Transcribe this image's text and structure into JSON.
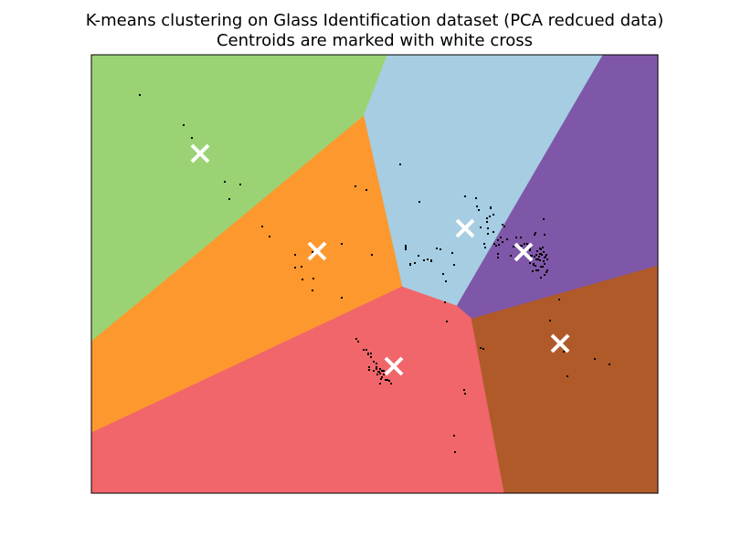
{
  "chart_data": {
    "type": "scatter",
    "title": "K-means clustering on Glass Identification dataset (PCA redcued data)",
    "subtitle": "Centroids are marked with white cross",
    "xlabel": "",
    "ylabel": "",
    "xlim": [
      0,
      620
    ],
    "ylim": [
      0,
      480
    ],
    "grid": false,
    "ticks_visible": false,
    "region_colors": {
      "green": "#9bd374",
      "light_blue": "#a6cde2",
      "orange": "#fd982f",
      "purple": "#7f57a8",
      "red": "#f0666a",
      "brown": "#b05a2a"
    },
    "regions": [
      {
        "color": "green",
        "polygon": [
          [
            0,
            0
          ],
          [
            324,
            0
          ],
          [
            298,
            67
          ],
          [
            0,
            314
          ]
        ]
      },
      {
        "color": "light_blue",
        "polygon": [
          [
            324,
            0
          ],
          [
            560,
            0
          ],
          [
            400,
            275
          ],
          [
            340,
            254
          ],
          [
            298,
            67
          ]
        ]
      },
      {
        "color": "purple",
        "polygon": [
          [
            560,
            0
          ],
          [
            620,
            0
          ],
          [
            620,
            231
          ],
          [
            416,
            289
          ],
          [
            400,
            275
          ]
        ]
      },
      {
        "color": "orange",
        "polygon": [
          [
            298,
            67
          ],
          [
            340,
            254
          ],
          [
            0,
            414
          ],
          [
            0,
            314
          ]
        ]
      },
      {
        "color": "red",
        "polygon": [
          [
            340,
            254
          ],
          [
            400,
            275
          ],
          [
            416,
            289
          ],
          [
            452,
            480
          ],
          [
            0,
            480
          ],
          [
            0,
            414
          ]
        ]
      },
      {
        "color": "brown",
        "polygon": [
          [
            416,
            289
          ],
          [
            620,
            231
          ],
          [
            620,
            480
          ],
          [
            452,
            480
          ]
        ]
      }
    ],
    "points": [
      [
        53,
        44
      ],
      [
        101,
        77
      ],
      [
        110,
        91
      ],
      [
        122,
        110
      ],
      [
        146,
        139
      ],
      [
        163,
        142
      ],
      [
        151,
        158
      ],
      [
        187,
        188
      ],
      [
        195,
        199
      ],
      [
        223,
        219
      ],
      [
        242,
        216
      ],
      [
        230,
        232
      ],
      [
        231,
        246
      ],
      [
        223,
        233
      ],
      [
        243,
        245
      ],
      [
        242,
        258
      ],
      [
        274,
        207
      ],
      [
        307,
        219
      ],
      [
        274,
        266
      ],
      [
        289,
        144
      ],
      [
        301,
        148
      ],
      [
        338,
        120
      ],
      [
        359,
        161
      ],
      [
        344,
        209
      ],
      [
        344,
        211
      ],
      [
        344,
        213
      ],
      [
        349,
        229
      ],
      [
        349,
        230
      ],
      [
        354,
        228
      ],
      [
        368,
        224
      ],
      [
        372,
        225
      ],
      [
        372,
        226
      ],
      [
        385,
        240
      ],
      [
        388,
        248
      ],
      [
        382,
        213
      ],
      [
        395,
        217
      ],
      [
        397,
        230
      ],
      [
        387,
        271
      ],
      [
        389,
        292
      ],
      [
        358,
        220
      ],
      [
        364,
        225
      ],
      [
        378,
        212
      ],
      [
        409,
        155
      ],
      [
        421,
        157
      ],
      [
        422,
        166
      ],
      [
        424,
        170
      ],
      [
        426,
        189
      ],
      [
        430,
        207
      ],
      [
        431,
        211
      ],
      [
        433,
        179
      ],
      [
        433,
        183
      ],
      [
        434,
        190
      ],
      [
        434,
        196
      ],
      [
        436,
        177
      ],
      [
        437,
        167
      ],
      [
        437,
        168
      ],
      [
        440,
        175
      ],
      [
        440,
        194
      ],
      [
        441,
        207
      ],
      [
        443,
        209
      ],
      [
        445,
        203
      ],
      [
        446,
        208
      ],
      [
        448,
        200
      ],
      [
        450,
        186
      ],
      [
        450,
        205
      ],
      [
        452,
        188
      ],
      [
        455,
        202
      ],
      [
        459,
        220
      ],
      [
        462,
        210
      ],
      [
        465,
        200
      ],
      [
        469,
        209
      ],
      [
        472,
        215
      ],
      [
        495,
        180
      ],
      [
        495,
        216
      ],
      [
        492,
        218
      ],
      [
        491,
        218
      ],
      [
        496,
        197
      ],
      [
        497,
        221
      ],
      [
        499,
        236
      ],
      [
        486,
        195
      ],
      [
        485,
        197
      ],
      [
        470,
        200
      ],
      [
        472,
        216
      ],
      [
        445,
        218
      ],
      [
        445,
        222
      ],
      [
        491,
        212
      ],
      [
        494,
        211
      ],
      [
        496,
        222
      ],
      [
        480,
        214
      ],
      [
        480,
        222
      ],
      [
        481,
        209
      ],
      [
        482,
        220
      ],
      [
        484,
        230
      ],
      [
        486,
        231
      ],
      [
        487,
        224
      ],
      [
        488,
        215
      ],
      [
        489,
        224
      ],
      [
        490,
        221
      ],
      [
        491,
        225
      ],
      [
        492,
        232
      ],
      [
        493,
        219
      ],
      [
        494,
        232
      ],
      [
        495,
        226
      ],
      [
        496,
        229
      ],
      [
        498,
        219
      ],
      [
        498,
        238
      ],
      [
        499,
        224
      ],
      [
        496,
        241
      ],
      [
        492,
        244
      ],
      [
        471,
        209
      ],
      [
        474,
        207
      ],
      [
        477,
        207
      ],
      [
        476,
        214
      ],
      [
        478,
        222
      ],
      [
        480,
        228
      ],
      [
        483,
        237
      ],
      [
        484,
        229
      ],
      [
        487,
        236
      ],
      [
        489,
        236
      ],
      [
        480,
        212
      ],
      [
        481,
        220
      ],
      [
        485,
        221
      ],
      [
        487,
        219
      ],
      [
        492,
        213
      ],
      [
        512,
        268
      ],
      [
        502,
        291
      ],
      [
        521,
        352
      ],
      [
        551,
        333
      ],
      [
        567,
        339
      ],
      [
        429,
        322
      ],
      [
        517,
        325
      ],
      [
        290,
        311
      ],
      [
        292,
        314
      ],
      [
        298,
        323
      ],
      [
        301,
        323
      ],
      [
        303,
        327
      ],
      [
        303,
        328
      ],
      [
        312,
        342
      ],
      [
        315,
        347
      ],
      [
        316,
        344
      ],
      [
        316,
        349
      ],
      [
        318,
        346
      ],
      [
        318,
        353
      ],
      [
        320,
        346
      ],
      [
        320,
        350
      ],
      [
        322,
        356
      ],
      [
        324,
        356
      ],
      [
        326,
        357
      ],
      [
        328,
        360
      ],
      [
        306,
        331
      ],
      [
        312,
        338
      ],
      [
        312,
        344
      ],
      [
        314,
        347
      ],
      [
        309,
        336
      ],
      [
        306,
        327
      ],
      [
        304,
        345
      ],
      [
        316,
        360
      ],
      [
        313,
        350
      ],
      [
        304,
        342
      ],
      [
        309,
        346
      ],
      [
        317,
        355
      ],
      [
        408,
        367
      ],
      [
        409,
        371
      ],
      [
        397,
        417
      ],
      [
        398,
        435
      ],
      [
        426,
        321
      ],
      [
        429,
        322
      ]
    ],
    "centroids": [
      [
        119,
        108
      ],
      [
        247,
        215
      ],
      [
        331,
        341
      ],
      [
        409,
        190
      ],
      [
        473,
        216
      ],
      [
        513,
        316
      ]
    ],
    "point_color": "#000000",
    "centroid_color": "#ffffff"
  }
}
